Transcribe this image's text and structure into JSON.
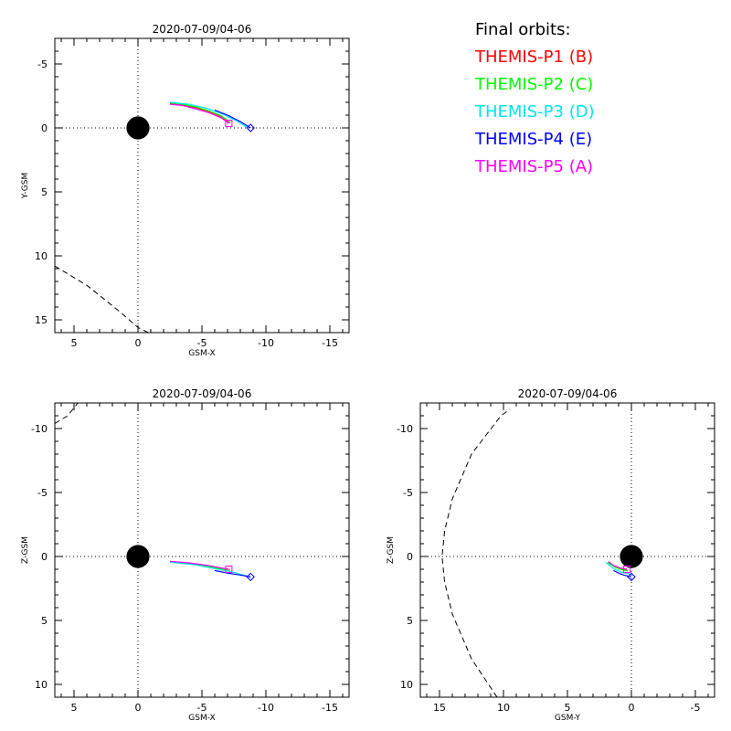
{
  "legend": {
    "title": "Final orbits:",
    "items": [
      {
        "label": "THEMIS-P1 (B)",
        "color": "#ff0000"
      },
      {
        "label": "THEMIS-P2 (C)",
        "color": "#00ff00"
      },
      {
        "label": "THEMIS-P3 (D)",
        "color": "#00e5ee"
      },
      {
        "label": "THEMIS-P4 (E)",
        "color": "#0000ff"
      },
      {
        "label": "THEMIS-P5 (A)",
        "color": "#ff00ff"
      }
    ]
  },
  "chart_data": [
    {
      "type": "line",
      "title": "2020-07-09/04-06",
      "xlabel": "GSM-X",
      "ylabel": "Y-GSM",
      "xlim": [
        6.5,
        -16.5
      ],
      "ylim": [
        -7,
        16
      ],
      "xticks": [
        5,
        0,
        -5,
        -10,
        -15
      ],
      "yticks": [
        -5,
        0,
        5,
        10,
        15
      ],
      "earth_radius": 0.9,
      "magnetopause": [
        [
          6.5,
          10.8
        ],
        [
          4.0,
          12.3
        ],
        [
          1.5,
          14.3
        ],
        [
          0.0,
          15.6
        ],
        [
          -0.8,
          16
        ]
      ],
      "series": [
        {
          "color": "#ff0000",
          "points": [
            [
              -2.5,
              -1.9
            ],
            [
              -3.5,
              -1.8
            ],
            [
              -4.5,
              -1.6
            ],
            [
              -5.5,
              -1.3
            ],
            [
              -6.5,
              -0.9
            ],
            [
              -7.2,
              -0.4
            ]
          ]
        },
        {
          "color": "#00ff00",
          "points": [
            [
              -2.5,
              -1.95
            ],
            [
              -3.5,
              -1.85
            ],
            [
              -4.5,
              -1.65
            ],
            [
              -5.5,
              -1.35
            ],
            [
              -6.5,
              -0.95
            ],
            [
              -7.2,
              -0.45
            ]
          ]
        },
        {
          "color": "#00e5ee",
          "points": [
            [
              -2.5,
              -2.0
            ],
            [
              -4.0,
              -1.85
            ],
            [
              -5.5,
              -1.5
            ],
            [
              -6.8,
              -1.0
            ],
            [
              -7.8,
              -0.5
            ],
            [
              -8.6,
              0.0
            ]
          ]
        },
        {
          "color": "#0000ff",
          "points": [
            [
              -6.0,
              -1.4
            ],
            [
              -7.0,
              -1.0
            ],
            [
              -8.0,
              -0.5
            ],
            [
              -8.8,
              0.0
            ]
          ]
        },
        {
          "color": "#ff00ff",
          "points": [
            [
              -2.5,
              -1.85
            ],
            [
              -3.5,
              -1.75
            ],
            [
              -4.5,
              -1.5
            ],
            [
              -5.5,
              -1.2
            ],
            [
              -6.5,
              -0.8
            ],
            [
              -7.1,
              -0.35
            ]
          ]
        }
      ],
      "markers": [
        {
          "shape": "diamond",
          "color": "#0000ff",
          "x": -8.8,
          "y": 0.0
        },
        {
          "shape": "square",
          "color": "#ff00ff",
          "x": -7.1,
          "y": -0.35
        }
      ]
    },
    {
      "type": "line",
      "title": "2020-07-09/04-06",
      "xlabel": "GSM-X",
      "ylabel": "Z-GSM",
      "xlim": [
        6.5,
        -16.5
      ],
      "ylim": [
        -12,
        11
      ],
      "xticks": [
        5,
        0,
        -5,
        -10,
        -15
      ],
      "yticks": [
        10,
        5,
        0,
        -5,
        -10
      ],
      "earth_radius": 0.9,
      "magnetopause": [
        [
          6.5,
          -10.4
        ],
        [
          5.5,
          -11.0
        ],
        [
          4.7,
          -12
        ]
      ],
      "series": [
        {
          "color": "#ff0000",
          "points": [
            [
              -2.5,
              0.4
            ],
            [
              -4.0,
              0.55
            ],
            [
              -5.5,
              0.75
            ],
            [
              -6.5,
              0.95
            ],
            [
              -7.2,
              1.05
            ]
          ]
        },
        {
          "color": "#00ff00",
          "points": [
            [
              -2.5,
              0.42
            ],
            [
              -4.0,
              0.57
            ],
            [
              -5.5,
              0.77
            ],
            [
              -6.5,
              0.97
            ],
            [
              -7.2,
              1.08
            ]
          ]
        },
        {
          "color": "#00e5ee",
          "points": [
            [
              -2.5,
              0.45
            ],
            [
              -4.5,
              0.65
            ],
            [
              -6.0,
              0.95
            ],
            [
              -7.5,
              1.25
            ],
            [
              -8.6,
              1.55
            ]
          ]
        },
        {
          "color": "#0000ff",
          "points": [
            [
              -6.0,
              1.1
            ],
            [
              -7.0,
              1.3
            ],
            [
              -8.0,
              1.45
            ],
            [
              -8.8,
              1.6
            ]
          ]
        },
        {
          "color": "#ff00ff",
          "points": [
            [
              -2.5,
              0.38
            ],
            [
              -4.0,
              0.5
            ],
            [
              -5.5,
              0.7
            ],
            [
              -6.5,
              0.9
            ],
            [
              -7.1,
              1.0
            ]
          ]
        }
      ],
      "markers": [
        {
          "shape": "diamond",
          "color": "#0000ff",
          "x": -8.8,
          "y": 1.6
        },
        {
          "shape": "square",
          "color": "#ff00ff",
          "x": -7.1,
          "y": 1.0
        }
      ]
    },
    {
      "type": "line",
      "title": "2020-07-09/04-06",
      "xlabel": "GSM-Y",
      "ylabel": "Z-GSM",
      "xlim": [
        16.5,
        -6.5
      ],
      "ylim": [
        -12,
        11
      ],
      "xticks": [
        15,
        10,
        5,
        0,
        -5
      ],
      "yticks": [
        10,
        5,
        0,
        -5,
        -10
      ],
      "earth_radius": 0.9,
      "magnetopause": [
        [
          10.5,
          11
        ],
        [
          12.5,
          8
        ],
        [
          14.0,
          4.5
        ],
        [
          14.6,
          2.0
        ],
        [
          14.8,
          0.0
        ],
        [
          14.6,
          -2.0
        ],
        [
          14.0,
          -4.5
        ],
        [
          12.5,
          -8
        ],
        [
          10.2,
          -11.0
        ],
        [
          9.5,
          -11.5
        ]
      ],
      "series": [
        {
          "color": "#ff0000",
          "points": [
            [
              0.3,
              1.1
            ],
            [
              0.8,
              1.0
            ],
            [
              1.3,
              0.8
            ],
            [
              1.8,
              0.45
            ]
          ]
        },
        {
          "color": "#00ff00",
          "points": [
            [
              0.3,
              1.12
            ],
            [
              0.8,
              1.02
            ],
            [
              1.3,
              0.82
            ],
            [
              1.85,
              0.47
            ]
          ]
        },
        {
          "color": "#00e5ee",
          "points": [
            [
              0.0,
              1.4
            ],
            [
              0.7,
              1.25
            ],
            [
              1.4,
              0.95
            ],
            [
              2.0,
              0.45
            ]
          ]
        },
        {
          "color": "#0000ff",
          "points": [
            [
              0.0,
              1.6
            ],
            [
              0.6,
              1.45
            ],
            [
              1.0,
              1.3
            ],
            [
              1.4,
              1.1
            ]
          ]
        },
        {
          "color": "#ff00ff",
          "points": [
            [
              0.35,
              1.0
            ],
            [
              0.9,
              0.9
            ],
            [
              1.4,
              0.7
            ],
            [
              1.8,
              0.4
            ]
          ]
        }
      ],
      "markers": [
        {
          "shape": "diamond",
          "color": "#0000ff",
          "x": 0.0,
          "y": 1.6
        },
        {
          "shape": "square",
          "color": "#ff00ff",
          "x": 0.35,
          "y": 1.0
        }
      ]
    }
  ]
}
